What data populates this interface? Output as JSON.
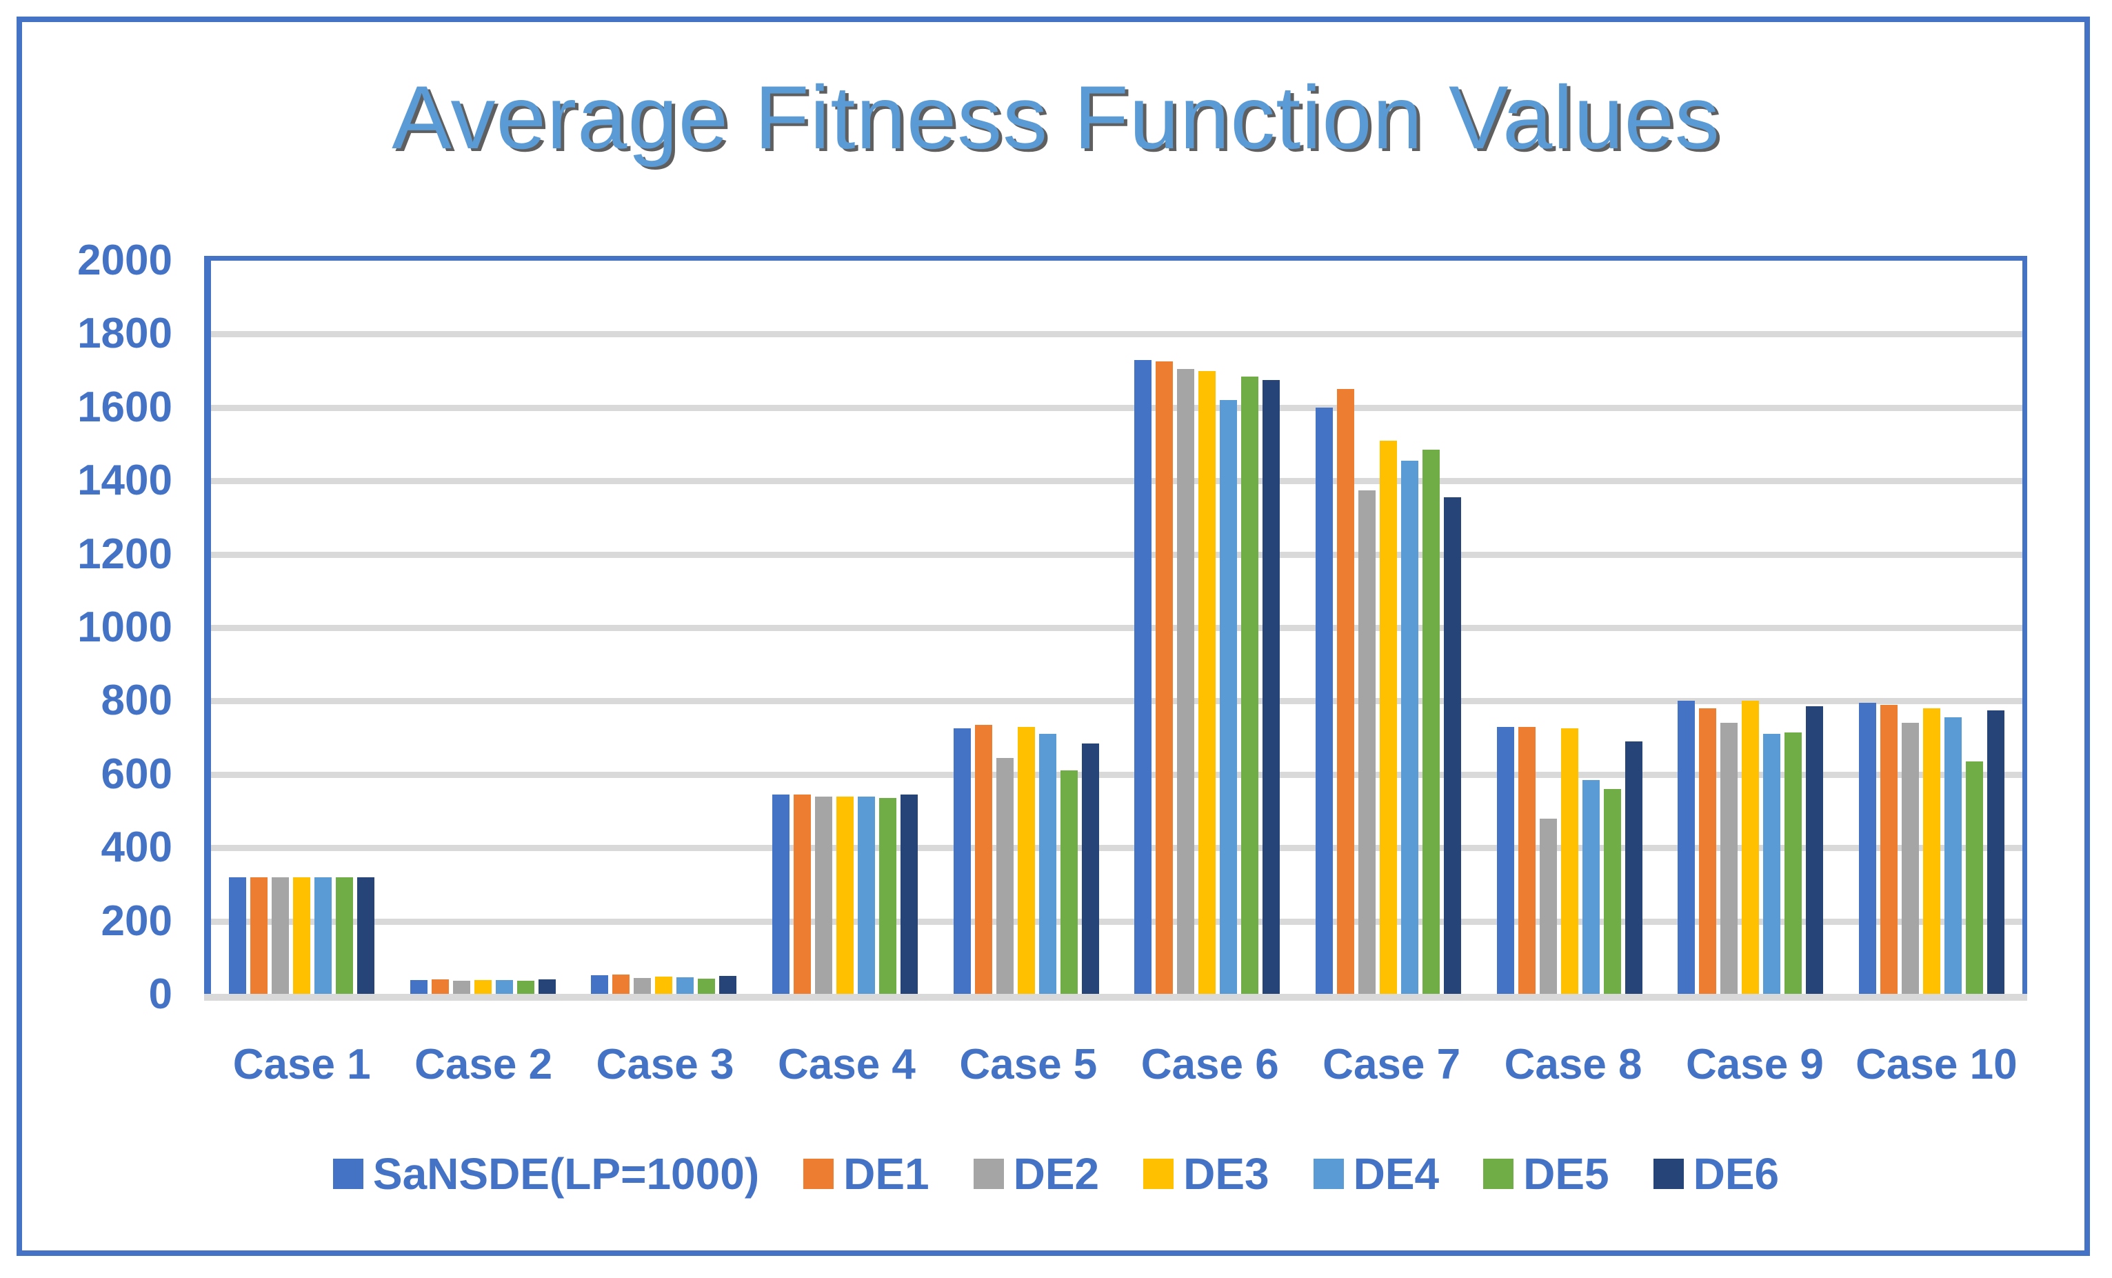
{
  "title": {
    "text": "Average Fitness Function Values"
  },
  "colors": {
    "accent_blue": "#4472C4",
    "grid": "#D9D9D9",
    "title_fill": "#5B9BD5",
    "title_shadow": "#5F5F5F",
    "label_text": "#4472C4"
  },
  "chart_data": {
    "type": "bar",
    "title": "Average Fitness Function Values",
    "categories": [
      "Case 1",
      "Case 2",
      "Case 3",
      "Case 4",
      "Case 5",
      "Case 6",
      "Case 7",
      "Case 8",
      "Case 9",
      "Case 10"
    ],
    "series": [
      {
        "name": "SaNSDE(LP=1000)",
        "color": "#4472C4",
        "values": [
          320,
          40,
          52,
          545,
          725,
          1730,
          1600,
          730,
          800,
          795
        ]
      },
      {
        "name": "DE1",
        "color": "#ED7D31",
        "values": [
          320,
          42,
          55,
          545,
          735,
          1725,
          1650,
          730,
          780,
          790
        ]
      },
      {
        "name": "DE2",
        "color": "#A5A5A5",
        "values": [
          320,
          38,
          45,
          540,
          645,
          1705,
          1375,
          480,
          740,
          740
        ]
      },
      {
        "name": "DE3",
        "color": "#FFC000",
        "values": [
          320,
          40,
          48,
          540,
          730,
          1700,
          1510,
          725,
          800,
          780
        ]
      },
      {
        "name": "DE4",
        "color": "#5B9BD5",
        "values": [
          320,
          40,
          47,
          540,
          710,
          1620,
          1455,
          585,
          710,
          755
        ]
      },
      {
        "name": "DE5",
        "color": "#70AD47",
        "values": [
          320,
          38,
          43,
          535,
          610,
          1685,
          1485,
          560,
          715,
          635
        ]
      },
      {
        "name": "DE6",
        "color": "#264478",
        "values": [
          320,
          41,
          50,
          545,
          685,
          1675,
          1355,
          690,
          785,
          775
        ]
      }
    ],
    "ylim": [
      0,
      2000
    ],
    "ytick_step": 200,
    "yticks": [
      0,
      200,
      400,
      600,
      800,
      1000,
      1200,
      1400,
      1600,
      1800,
      2000
    ],
    "grid": "horizontal",
    "legend_position": "bottom"
  }
}
